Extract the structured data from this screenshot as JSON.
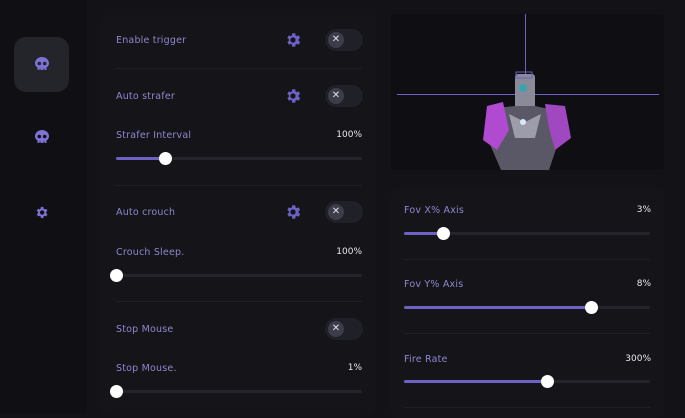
{
  "sidebar": {
    "items": [
      {
        "icon": "skull-icon",
        "active": true
      },
      {
        "icon": "skull-icon",
        "active": false
      },
      {
        "icon": "gear-icon",
        "active": false
      }
    ]
  },
  "accent": "#6c62c4",
  "left_panel": {
    "enable_trigger": {
      "label": "Enable trigger",
      "enabled": false
    },
    "auto_strafer": {
      "label": "Auto strafer",
      "enabled": false
    },
    "strafer_interval": {
      "label": "Strafer Interval",
      "value": "100%",
      "fill": 0.2
    },
    "auto_crouch": {
      "label": "Auto crouch",
      "enabled": false
    },
    "crouch_sleep": {
      "label": "Crouch Sleep.",
      "value": "100%",
      "fill": 0.0
    },
    "stop_mouse": {
      "label": "Stop Mouse",
      "enabled": false
    },
    "stop_mouse_value": {
      "label": "Stop Mouse.",
      "value": "1%",
      "fill": 0.0
    }
  },
  "right_panel": {
    "fov_x": {
      "label": "Fov X% Axis",
      "value": "3%",
      "fill": 0.16
    },
    "fov_y": {
      "label": "Fov Y% Axis",
      "value": "8%",
      "fill": 0.76
    },
    "fire_rate": {
      "label": "Fire Rate",
      "value": "300%",
      "fill": 0.58
    }
  },
  "toggle_off_glyph": "✕"
}
